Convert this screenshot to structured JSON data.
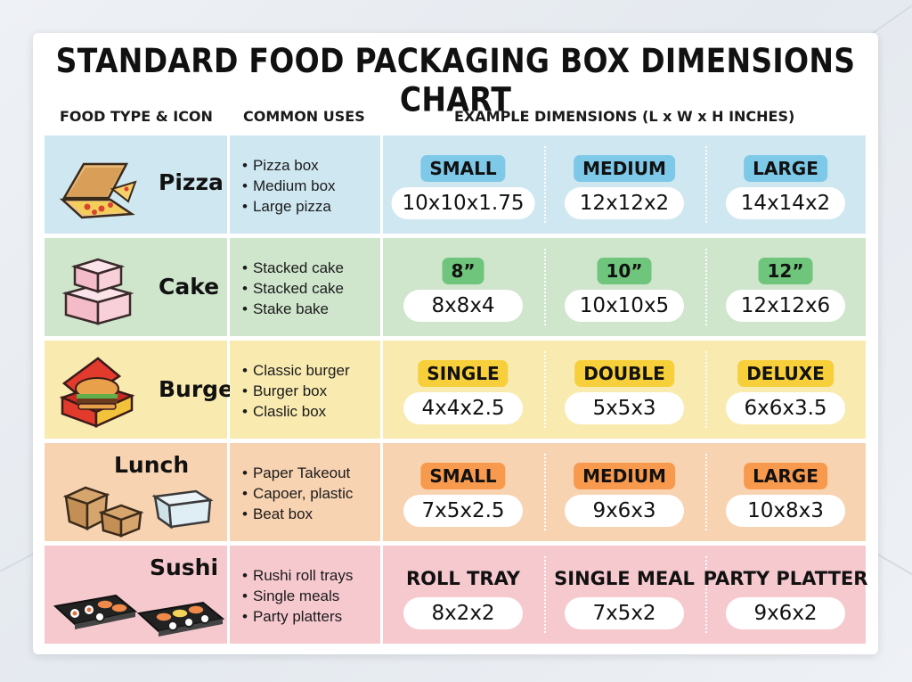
{
  "title": "STANDARD FOOD PACKAGING BOX DIMENSIONS CHART",
  "headers": {
    "food": "FOOD TYPE & ICON",
    "uses": "COMMON USES",
    "dims": "EXAMPLE DIMENSIONS (L x W x H INCHES)"
  },
  "rows": [
    {
      "name": "Pizza",
      "icon": "pizza-box-icon",
      "colors": {
        "bg": "#cfe7f1",
        "badge": "#7ec8e8"
      },
      "uses": [
        "Pizza box",
        "Medium box",
        "Large pizza"
      ],
      "dims": [
        {
          "label": "SMALL",
          "value": "10x10x1.75"
        },
        {
          "label": "MEDIUM",
          "value": "12x12x2"
        },
        {
          "label": "LARGE",
          "value": "14x14x2"
        }
      ]
    },
    {
      "name": "Cake",
      "icon": "cake-box-icon",
      "colors": {
        "bg": "#cfe6cd",
        "badge": "#6fc57c"
      },
      "uses": [
        "Stacked cake",
        "Stacked cake",
        "Stake bake"
      ],
      "dims": [
        {
          "label": "8”",
          "value": "8x8x4"
        },
        {
          "label": "10”",
          "value": "10x10x5"
        },
        {
          "label": "12”",
          "value": "12x12x6"
        }
      ]
    },
    {
      "name": "Burger",
      "icon": "burger-box-icon",
      "colors": {
        "bg": "#f9eab0",
        "badge": "#f7cf3a"
      },
      "uses": [
        "Classic burger",
        "Burger box",
        "Claslic box"
      ],
      "dims": [
        {
          "label": "SINGLE",
          "value": "4x4x2.5"
        },
        {
          "label": "DOUBLE",
          "value": "5x5x3"
        },
        {
          "label": "DELUXE",
          "value": "6x6x3.5"
        }
      ]
    },
    {
      "name": "Lunch",
      "icon": "lunch-box-icon",
      "colors": {
        "bg": "#f8d3b2",
        "badge": "#f79a4e"
      },
      "uses": [
        "Paper Takeout",
        "Capoer, plastic",
        "Beat box"
      ],
      "dims": [
        {
          "label": "SMALL",
          "value": "7x5x2.5"
        },
        {
          "label": "MEDIUM",
          "value": "9x6x3"
        },
        {
          "label": "LARGE",
          "value": "10x8x3"
        }
      ]
    },
    {
      "name": "Sushi",
      "icon": "sushi-tray-icon",
      "colors": {
        "bg": "#f6c9cf",
        "badge": "transparent"
      },
      "uses": [
        "Rushi roll trays",
        "Single meals",
        "Party platters"
      ],
      "dims": [
        {
          "label": "ROLL TRAY",
          "value": "8x2x2"
        },
        {
          "label": "SINGLE MEAL",
          "value": "7x5x2"
        },
        {
          "label": "PARTY PLATTER",
          "value": "9x6x2"
        }
      ]
    }
  ]
}
